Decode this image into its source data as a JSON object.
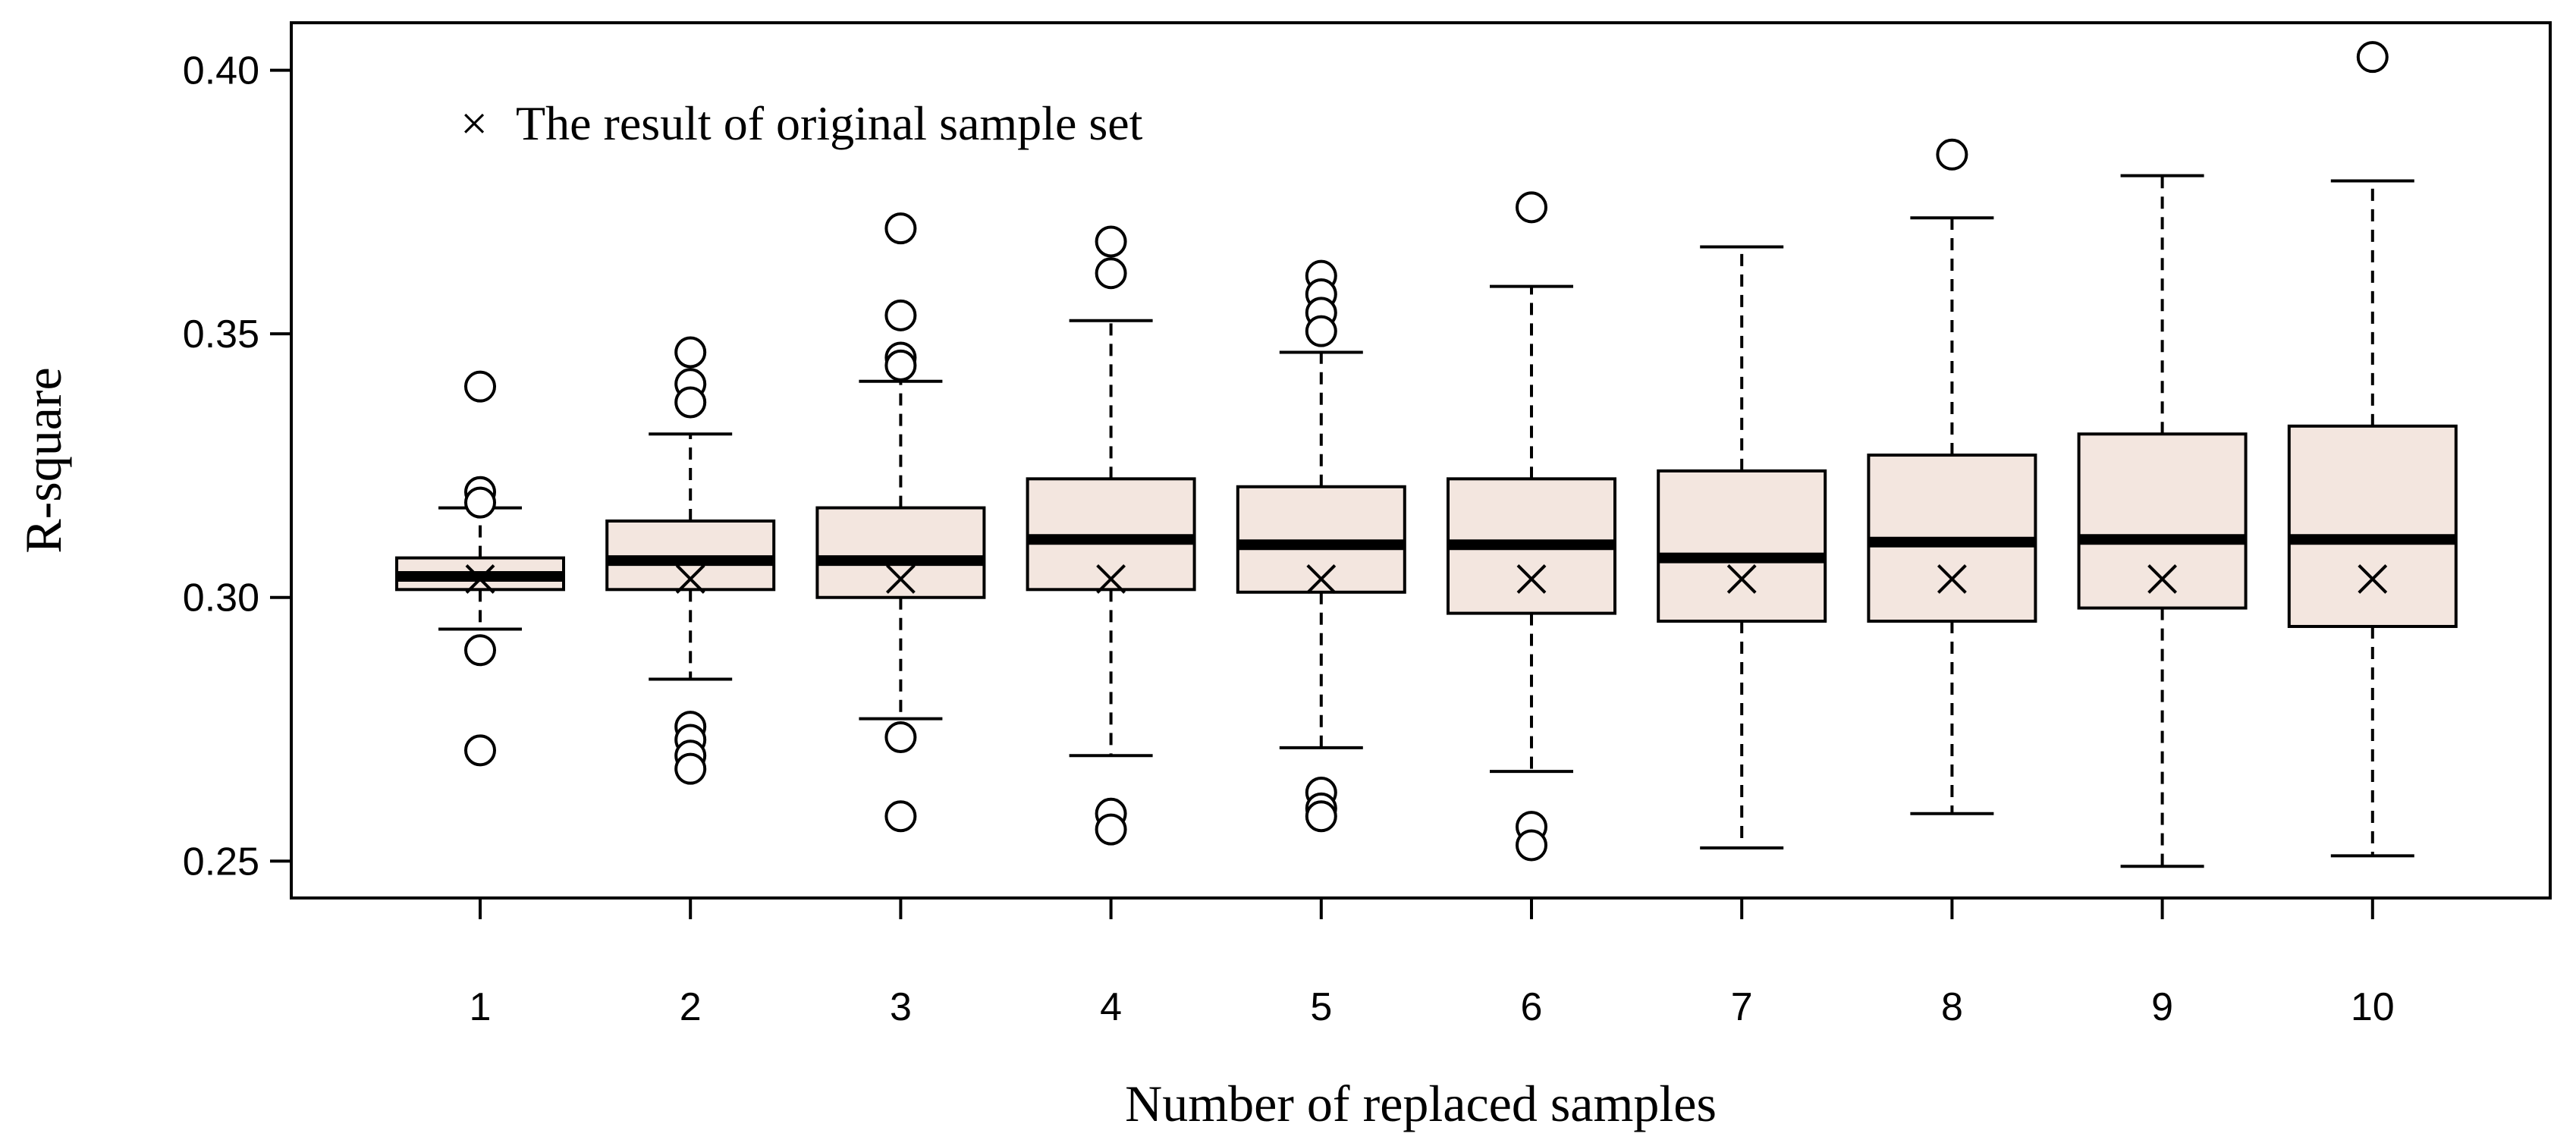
{
  "chart_data": {
    "type": "box",
    "title": "",
    "xlabel": "Number of replaced samples",
    "ylabel": "R-square",
    "ylim": [
      0.243,
      0.409
    ],
    "yticks": [
      0.25,
      0.3,
      0.35,
      0.4
    ],
    "ytick_labels": [
      "0.25",
      "0.30",
      "0.35",
      "0.40"
    ],
    "categories": [
      "1",
      "2",
      "3",
      "4",
      "5",
      "6",
      "7",
      "8",
      "9",
      "10"
    ],
    "grid": false,
    "box_fill": "#f3e6df",
    "legend": {
      "position": "top-left",
      "marker": "×",
      "label": "The result of original sample set"
    },
    "original_result": 0.3035,
    "boxes": [
      {
        "category": "1",
        "whisker_low": 0.294,
        "q1": 0.3015,
        "median": 0.304,
        "q3": 0.3075,
        "whisker_high": 0.317,
        "outliers": [
          0.34,
          0.32,
          0.318,
          0.29,
          0.271
        ]
      },
      {
        "category": "2",
        "whisker_low": 0.2845,
        "q1": 0.3015,
        "median": 0.307,
        "q3": 0.3145,
        "whisker_high": 0.331,
        "outliers": [
          0.3465,
          0.3405,
          0.337,
          0.2755,
          0.273,
          0.27,
          0.2675
        ]
      },
      {
        "category": "3",
        "whisker_low": 0.277,
        "q1": 0.3,
        "median": 0.307,
        "q3": 0.317,
        "whisker_high": 0.341,
        "outliers": [
          0.37,
          0.3535,
          0.3455,
          0.344,
          0.2735,
          0.2585
        ]
      },
      {
        "category": "4",
        "whisker_low": 0.27,
        "q1": 0.3015,
        "median": 0.311,
        "q3": 0.3225,
        "whisker_high": 0.3525,
        "outliers": [
          0.3675,
          0.3615,
          0.259,
          0.256
        ]
      },
      {
        "category": "5",
        "whisker_low": 0.2715,
        "q1": 0.301,
        "median": 0.31,
        "q3": 0.321,
        "whisker_high": 0.3465,
        "outliers": [
          0.361,
          0.3575,
          0.354,
          0.3505,
          0.263,
          0.26,
          0.2585
        ]
      },
      {
        "category": "6",
        "whisker_low": 0.267,
        "q1": 0.297,
        "median": 0.31,
        "q3": 0.3225,
        "whisker_high": 0.359,
        "outliers": [
          0.374,
          0.2565,
          0.253
        ]
      },
      {
        "category": "7",
        "whisker_low": 0.2525,
        "q1": 0.2955,
        "median": 0.3075,
        "q3": 0.324,
        "whisker_high": 0.3665,
        "outliers": []
      },
      {
        "category": "8",
        "whisker_low": 0.259,
        "q1": 0.2955,
        "median": 0.3105,
        "q3": 0.327,
        "whisker_high": 0.372,
        "outliers": [
          0.384
        ]
      },
      {
        "category": "9",
        "whisker_low": 0.249,
        "q1": 0.298,
        "median": 0.311,
        "q3": 0.331,
        "whisker_high": 0.38,
        "outliers": []
      },
      {
        "category": "10",
        "whisker_low": 0.251,
        "q1": 0.2945,
        "median": 0.311,
        "q3": 0.3325,
        "whisker_high": 0.379,
        "outliers": [
          0.4025
        ]
      }
    ]
  }
}
